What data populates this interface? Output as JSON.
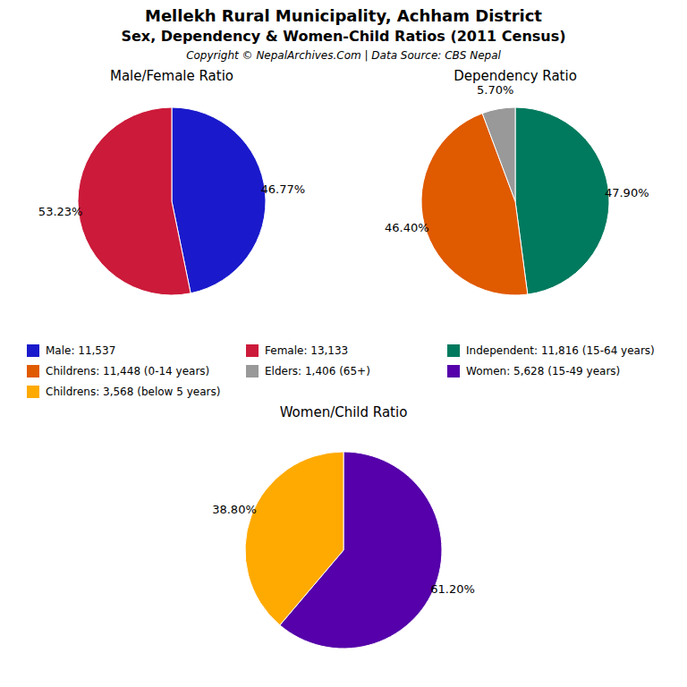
{
  "title": "Mellekh Rural Municipality, Achham District",
  "subtitle": "Sex, Dependency & Women-Child Ratios (2011 Census)",
  "annotations": [
    "Copyright © NepalArchives.Com | Data Source: CBS Nepal"
  ],
  "chart_data": [
    {
      "type": "pie",
      "title": "Male/Female Ratio",
      "categories": [
        "Male: 11,537",
        "Female: 13,133"
      ],
      "values": [
        46.77,
        53.23
      ],
      "value_labels": [
        "46.77%",
        "53.23%"
      ],
      "colors": [
        "#1a1acc",
        "#cc1a3a"
      ],
      "data_labels": true
    },
    {
      "type": "pie",
      "title": "Dependency Ratio",
      "categories": [
        "Independent: 11,816 (15-64 years)",
        "Childrens: 11,448 (0-14 years)",
        "Elders: 1,406 (65+)"
      ],
      "values": [
        47.9,
        46.4,
        5.7
      ],
      "value_labels": [
        "47.90%",
        "46.40%",
        "5.70%"
      ],
      "colors": [
        "#007a5e",
        "#e05a00",
        "#999999"
      ],
      "data_labels": true
    },
    {
      "type": "pie",
      "title": "Women/Child Ratio",
      "categories": [
        "Women: 5,628 (15-49 years)",
        "Childrens: 3,568 (below 5 years)"
      ],
      "values": [
        61.2,
        38.8
      ],
      "value_labels": [
        "61.20%",
        "38.80%"
      ],
      "colors": [
        "#5500aa",
        "#ffaa00"
      ],
      "data_labels": true
    }
  ]
}
